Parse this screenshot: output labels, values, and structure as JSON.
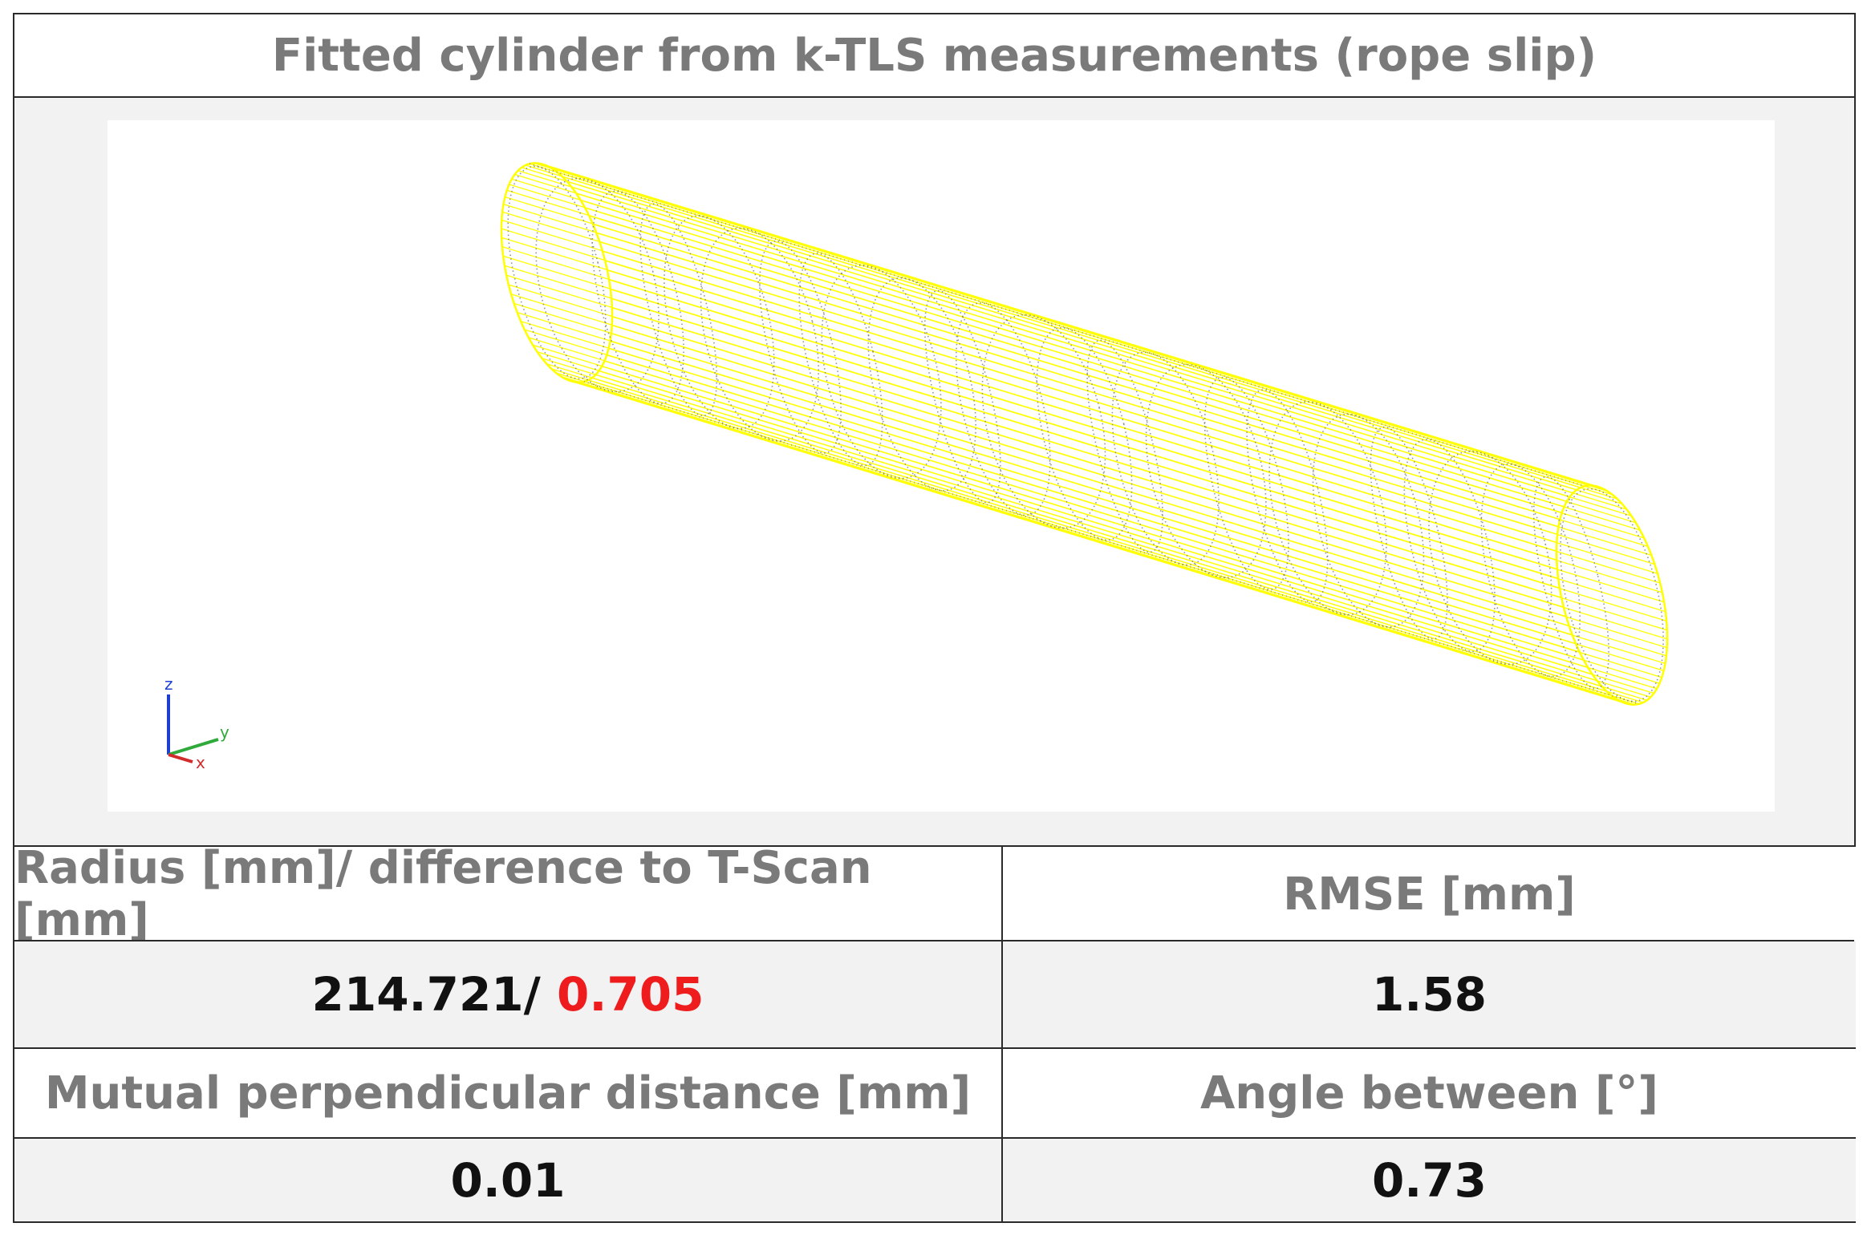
{
  "title": "Fitted cylinder from k-TLS measurements (rope slip)",
  "viewport": {
    "wire_color": "#ffff00",
    "point_color": "#6e6e6e",
    "axes": {
      "x_label": "x",
      "y_label": "y",
      "z_label": "z",
      "x_color": "#d12b2b",
      "y_color": "#2faa3a",
      "z_color": "#1f3fd1"
    }
  },
  "table": {
    "radius_header": "Radius [mm]/ difference to T-Scan [mm]",
    "rmse_header": "RMSE [mm]",
    "radius_value": "214.721/ ",
    "difference_value": "0.705",
    "rmse_value": "1.58",
    "distance_header": "Mutual perpendicular distance [mm]",
    "angle_header": "Angle between [°]",
    "distance_value": "0.01",
    "angle_value": "0.73",
    "difference_color": "#ee1c1c"
  }
}
